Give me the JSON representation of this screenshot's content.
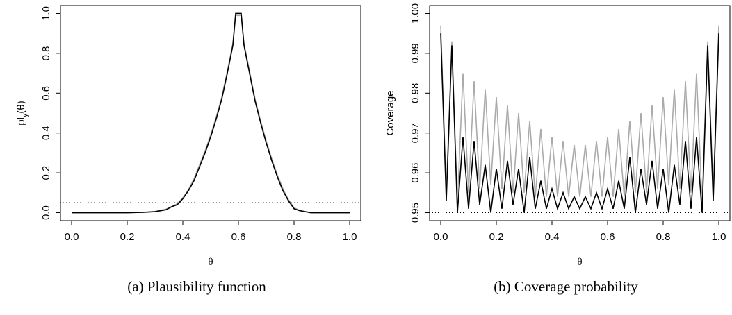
{
  "charts": [
    {
      "type": "line",
      "caption": "(a) Plausibility function",
      "xlabel": "θ",
      "ylabel": [
        "pl",
        "y",
        "(θ)"
      ],
      "xlim": [
        -0.04,
        1.04
      ],
      "ylim": [
        -0.04,
        1.04
      ],
      "xticks": [
        {
          "value": 0,
          "label": "0.0"
        },
        0.2,
        0.4,
        0.6,
        0.8,
        {
          "value": 1,
          "label": "1.0"
        }
      ],
      "yticks": [
        {
          "value": 0,
          "label": "0.0"
        },
        0.2,
        0.4,
        0.6,
        0.8,
        {
          "value": 1,
          "label": "1.0"
        }
      ],
      "hline": 0.05,
      "x": [
        0,
        0.1,
        0.2,
        0.26,
        0.3,
        0.32,
        0.34,
        0.36,
        0.38,
        0.4,
        0.42,
        0.44,
        0.46,
        0.48,
        0.5,
        0.52,
        0.54,
        0.56,
        0.58,
        0.59,
        0.61,
        0.62,
        0.64,
        0.66,
        0.68,
        0.7,
        0.72,
        0.74,
        0.76,
        0.78,
        0.8,
        0.82,
        0.84,
        0.86,
        0.9,
        1
      ],
      "series": [
        {
          "color": "#aaaaaa",
          "values": [
            0,
            0,
            0,
            0.002,
            0.006,
            0.012,
            0.018,
            0.03,
            0.045,
            0.075,
            0.115,
            0.17,
            0.24,
            0.31,
            0.39,
            0.48,
            0.58,
            0.71,
            0.85,
            0.99,
            0.99,
            0.85,
            0.71,
            0.57,
            0.46,
            0.36,
            0.27,
            0.19,
            0.12,
            0.065,
            0.025,
            0.012,
            0.005,
            0.001,
            0,
            0
          ]
        },
        {
          "color": "#000000",
          "values": [
            0,
            0,
            0,
            0.002,
            0.005,
            0.01,
            0.015,
            0.03,
            0.04,
            0.07,
            0.11,
            0.16,
            0.23,
            0.3,
            0.38,
            0.47,
            0.57,
            0.7,
            0.84,
            1,
            1,
            0.84,
            0.7,
            0.56,
            0.45,
            0.35,
            0.26,
            0.18,
            0.11,
            0.06,
            0.02,
            0.01,
            0.005,
            0,
            0,
            0
          ]
        }
      ]
    },
    {
      "type": "line",
      "caption": "(b) Coverage probability",
      "xlabel": "θ",
      "ylabel": [
        "Coverage"
      ],
      "xlim": [
        -0.04,
        1.04
      ],
      "ylim": [
        0.948,
        1.002
      ],
      "xticks": [
        {
          "value": 0,
          "label": "0.0"
        },
        0.2,
        0.4,
        0.6,
        0.8,
        {
          "value": 1,
          "label": "1.0"
        }
      ],
      "yticks": [
        0.95,
        0.96,
        0.97,
        0.98,
        0.99,
        {
          "value": 1,
          "label": "1.00"
        }
      ],
      "hline": 0.95,
      "x": [
        0,
        0.02,
        0.04,
        0.06,
        0.08,
        0.1,
        0.12,
        0.14,
        0.16,
        0.18,
        0.2,
        0.22,
        0.24,
        0.26,
        0.28,
        0.3,
        0.32,
        0.34,
        0.36,
        0.38,
        0.4,
        0.42,
        0.44,
        0.46,
        0.48,
        0.5,
        0.52,
        0.54,
        0.56,
        0.58,
        0.6,
        0.62,
        0.64,
        0.66,
        0.68,
        0.7,
        0.72,
        0.74,
        0.76,
        0.78,
        0.8,
        0.82,
        0.84,
        0.86,
        0.88,
        0.9,
        0.92,
        0.94,
        0.96,
        0.98,
        1
      ],
      "series": [
        {
          "color": "#aaaaaa",
          "values": [
            0.997,
            0.955,
            0.993,
            0.952,
            0.985,
            0.955,
            0.983,
            0.956,
            0.981,
            0.957,
            0.979,
            0.956,
            0.977,
            0.955,
            0.975,
            0.955,
            0.973,
            0.954,
            0.971,
            0.954,
            0.969,
            0.954,
            0.968,
            0.954,
            0.967,
            0.954,
            0.967,
            0.954,
            0.968,
            0.954,
            0.969,
            0.954,
            0.971,
            0.954,
            0.973,
            0.955,
            0.975,
            0.955,
            0.977,
            0.956,
            0.979,
            0.957,
            0.981,
            0.956,
            0.983,
            0.955,
            0.985,
            0.952,
            0.993,
            0.955,
            0.997
          ]
        },
        {
          "color": "#000000",
          "values": [
            0.995,
            0.953,
            0.992,
            0.95,
            0.969,
            0.951,
            0.968,
            0.952,
            0.962,
            0.95,
            0.961,
            0.951,
            0.963,
            0.952,
            0.961,
            0.95,
            0.964,
            0.951,
            0.958,
            0.951,
            0.956,
            0.951,
            0.955,
            0.951,
            0.954,
            0.951,
            0.954,
            0.951,
            0.955,
            0.951,
            0.956,
            0.951,
            0.958,
            0.951,
            0.964,
            0.95,
            0.961,
            0.952,
            0.963,
            0.951,
            0.961,
            0.95,
            0.962,
            0.952,
            0.968,
            0.951,
            0.969,
            0.95,
            0.992,
            0.953,
            0.995
          ]
        }
      ]
    }
  ]
}
